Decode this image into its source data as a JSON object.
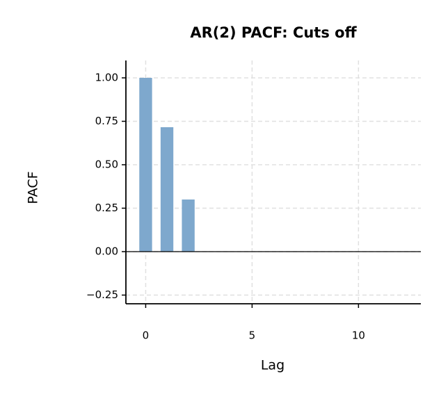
{
  "chart_data": {
    "type": "bar",
    "title": "AR(2) PACF: Cuts off",
    "x_label": "Lag",
    "y_label": "PACF",
    "x": [
      0,
      1,
      2
    ],
    "values": [
      1.0,
      0.716,
      0.3
    ],
    "color": "#7ea8cd",
    "xlim": [
      -0.93,
      12.93
    ],
    "xticks": [
      0,
      5,
      10
    ],
    "ylim": [
      -0.3,
      1.1
    ],
    "yticks": [
      {
        "value": -0.25,
        "label": "−0.25"
      },
      {
        "value": 0,
        "label": "0.00"
      },
      {
        "value": 0.25,
        "label": "0.25"
      },
      {
        "value": 0.5,
        "label": "0.50"
      },
      {
        "value": 0.75,
        "label": "0.75"
      },
      {
        "value": 1,
        "label": "1.00"
      }
    ],
    "grid": true
  }
}
